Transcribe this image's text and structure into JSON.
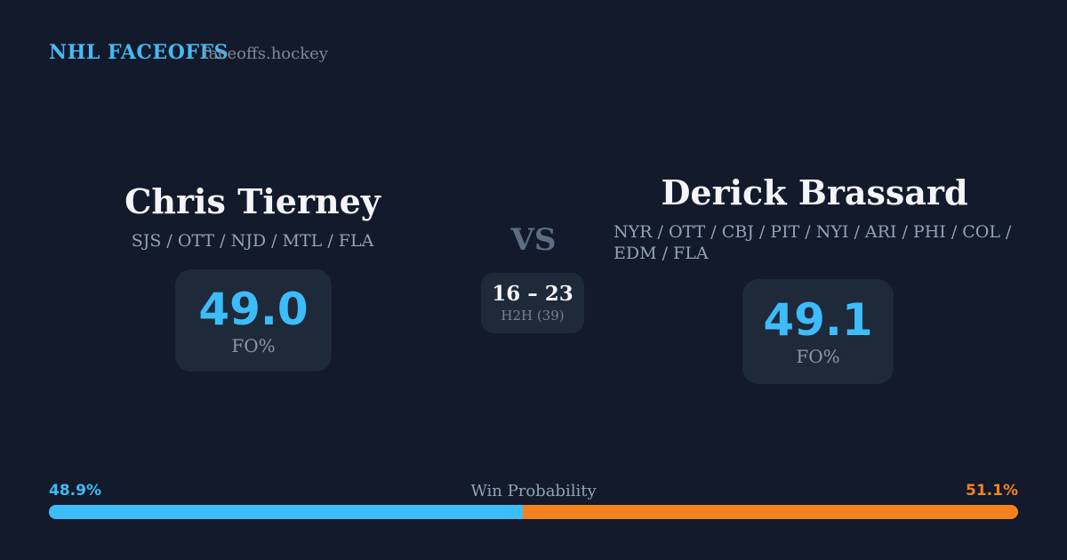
{
  "header": {
    "brand": "NHL FACEOFFS",
    "domain": "faceoffs.hockey"
  },
  "players": [
    {
      "name": "Chris Tierney",
      "teams_lines": [
        "SJS / OTT / NJD / MTL / FLA"
      ],
      "fo_value": "49.0",
      "fo_label": "FO%"
    },
    {
      "name": "Derick Brassard",
      "teams_lines": [
        "NYR / OTT / CBJ / PIT / NYI / ARI / PHI / COL /",
        "EDM / FLA"
      ],
      "fo_value": "49.1",
      "fo_label": "FO%"
    }
  ],
  "matchup": {
    "vs_label": "VS",
    "h2h_score": "16 – 23",
    "h2h_label": "H2H (39)"
  },
  "win_probability": {
    "title": "Win Probability",
    "left_pct_label": "48.9%",
    "right_pct_label": "51.1%",
    "left_value": 48.9,
    "right_value": 51.1
  },
  "colors": {
    "background": "#121A2B",
    "panel": "#1E2939",
    "accent_blue": "#3CBCF8",
    "accent_orange": "#F5821D",
    "text_primary": "#F3F5F8",
    "text_secondary": "#93A3B7",
    "text_muted": "#5D6E84"
  }
}
